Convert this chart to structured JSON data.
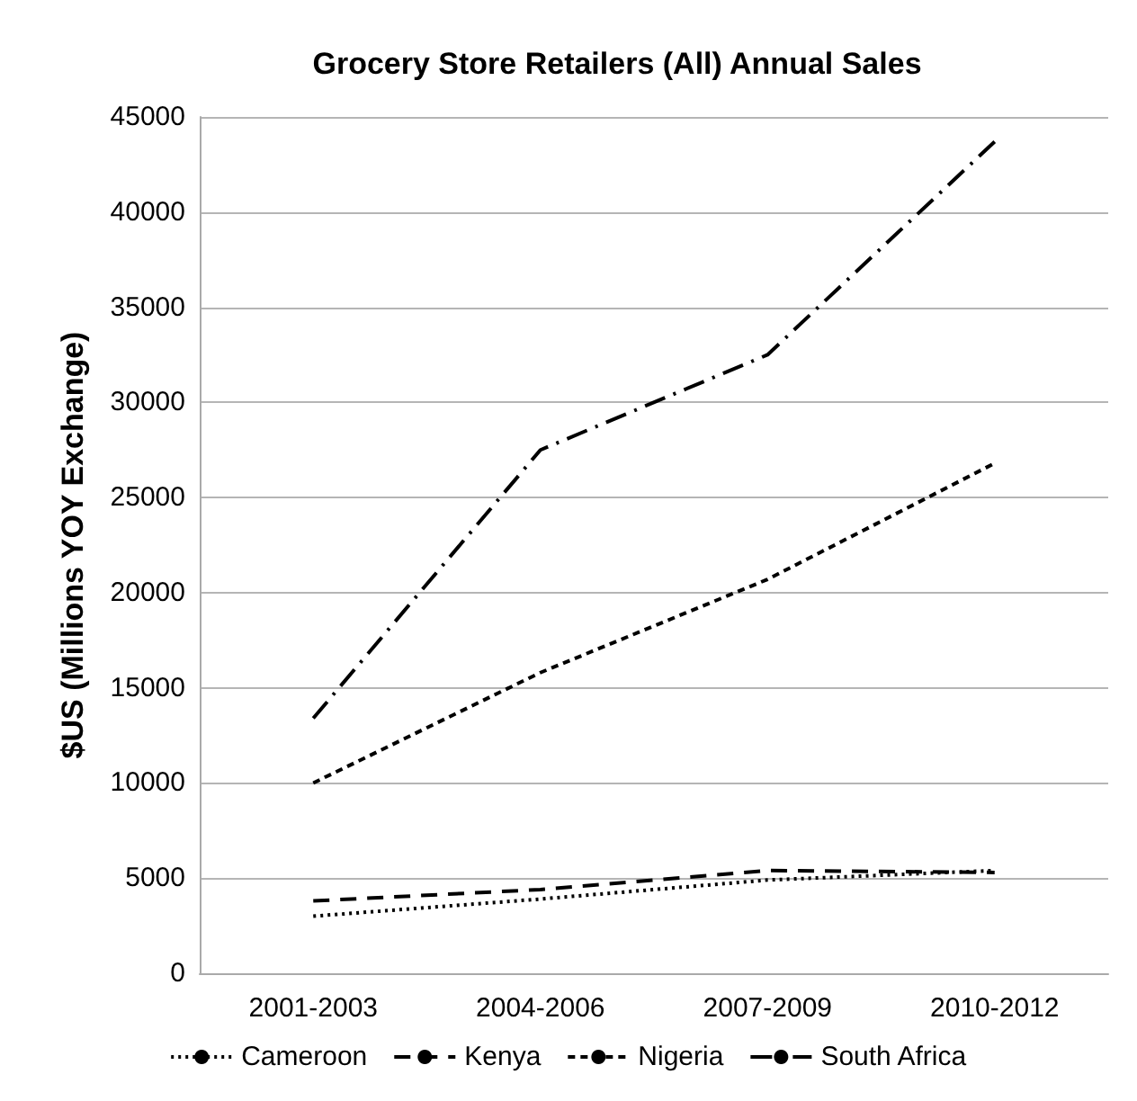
{
  "chart_data": {
    "type": "line",
    "title": "Grocery Store Retailers (All) Annual Sales",
    "ylabel": "$US (Millions YOY Exchange)",
    "categories": [
      "2001-2003",
      "2004-2006",
      "2007-2009",
      "2010-2012"
    ],
    "series": [
      {
        "name": "Cameroon",
        "color": "#000000",
        "line_style": "dotted",
        "values": [
          3000,
          3900,
          4900,
          5400
        ]
      },
      {
        "name": "Kenya",
        "color": "#000000",
        "line_style": "longdash",
        "values": [
          3800,
          4400,
          5400,
          5300
        ]
      },
      {
        "name": "Nigeria",
        "color": "#000000",
        "line_style": "dashed",
        "values": [
          10000,
          15800,
          20700,
          26800
        ]
      },
      {
        "name": "South Africa",
        "color": "#000000",
        "line_style": "dashdot",
        "values": [
          13400,
          27500,
          32500,
          43700
        ]
      }
    ],
    "ylim": [
      0,
      45000
    ],
    "yticks": [
      0,
      5000,
      10000,
      15000,
      20000,
      25000,
      30000,
      35000,
      40000,
      45000
    ],
    "grid": "y",
    "legend": "bottom",
    "marker": "none"
  }
}
